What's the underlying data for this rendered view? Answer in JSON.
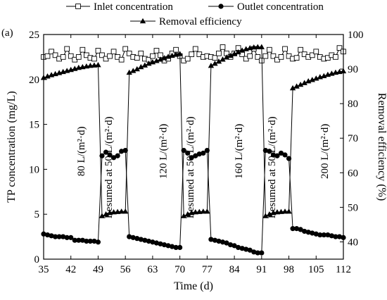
{
  "panel_label": "(a)",
  "chart_data": {
    "type": "line",
    "xlabel": "Time (d)",
    "ylabel_left": "TP concentration (mg/L)",
    "ylabel_right": "Removal efficiency (%)",
    "xlim": [
      35,
      112
    ],
    "ylim_left": [
      0,
      25
    ],
    "ylim_right": [
      35,
      100
    ],
    "xticks": [
      35,
      42,
      49,
      56,
      63,
      70,
      77,
      84,
      91,
      98,
      105,
      112
    ],
    "yticks_left": [
      0,
      5,
      10,
      15,
      20,
      25
    ],
    "yticks_right": [
      40,
      50,
      60,
      70,
      80,
      90,
      100
    ],
    "legend_position": "top",
    "series": [
      {
        "name": "Inlet concentration",
        "axis": "left",
        "marker": "square-open",
        "x": [
          35,
          36,
          37,
          38,
          39,
          40,
          41,
          42,
          43,
          44,
          45,
          46,
          47,
          48,
          49,
          50,
          51,
          52,
          53,
          54,
          55,
          56,
          57,
          58,
          59,
          60,
          61,
          62,
          63,
          64,
          65,
          66,
          67,
          68,
          69,
          70,
          71,
          72,
          73,
          74,
          75,
          76,
          77,
          78,
          79,
          80,
          81,
          82,
          83,
          84,
          85,
          86,
          87,
          88,
          89,
          90,
          91,
          92,
          93,
          94,
          95,
          96,
          97,
          98,
          99,
          100,
          101,
          102,
          103,
          104,
          105,
          106,
          107,
          108,
          109,
          110,
          111,
          112
        ],
        "values": [
          22.5,
          22.6,
          23.1,
          22.7,
          22.3,
          22.5,
          23.4,
          22.6,
          22.2,
          22.5,
          23.3,
          22.7,
          22.4,
          22.3,
          23.2,
          22.7,
          22.3,
          22.6,
          23.1,
          22.5,
          22.2,
          23.4,
          22.9,
          22.5,
          22.4,
          22.9,
          22.3,
          22.2,
          22.6,
          23.2,
          22.7,
          22.1,
          22.3,
          22.9,
          23.3,
          22.6,
          22.1,
          22.3,
          22.8,
          23.4,
          22.8,
          22.5,
          22.6,
          22.5,
          22.4,
          22.9,
          23.6,
          22.9,
          22.5,
          22.9,
          23.5,
          22.8,
          22.3,
          22.6,
          23.4,
          22.5,
          22.1,
          22.6,
          23.3,
          22.6,
          22.2,
          22.5,
          23.4,
          22.6,
          22.3,
          22.4,
          23.3,
          22.8,
          22.5,
          22.7,
          23.1,
          22.5,
          22.3,
          22.4,
          22.7,
          22.5,
          23.5,
          23.1
        ]
      },
      {
        "name": "Outlet concentration",
        "axis": "left",
        "marker": "circle-filled",
        "x": [
          35,
          36,
          37,
          38,
          39,
          40,
          41,
          42,
          43,
          44,
          45,
          46,
          47,
          48,
          49,
          50,
          51,
          52,
          53,
          54,
          55,
          56,
          57,
          58,
          59,
          60,
          61,
          62,
          63,
          64,
          65,
          66,
          67,
          68,
          69,
          70,
          71,
          72,
          73,
          74,
          75,
          76,
          77,
          78,
          79,
          80,
          81,
          82,
          83,
          84,
          85,
          86,
          87,
          88,
          89,
          90,
          91,
          92,
          93,
          94,
          95,
          96,
          97,
          98,
          99,
          100,
          101,
          102,
          103,
          104,
          105,
          106,
          107,
          108,
          109,
          110,
          111,
          112
        ],
        "values": [
          2.8,
          2.7,
          2.6,
          2.5,
          2.5,
          2.5,
          2.4,
          2.4,
          2.1,
          2.1,
          2.1,
          2.0,
          2.0,
          2.0,
          1.9,
          11.5,
          11.9,
          11.6,
          11.3,
          11.5,
          12.0,
          12.1,
          2.5,
          2.4,
          2.3,
          2.2,
          2.1,
          2.0,
          1.9,
          1.8,
          1.7,
          1.6,
          1.5,
          1.4,
          1.3,
          1.3,
          12.1,
          11.8,
          11.3,
          11.5,
          11.7,
          11.8,
          12.1,
          2.2,
          2.1,
          2.0,
          1.9,
          1.8,
          1.6,
          1.5,
          1.3,
          1.2,
          1.1,
          1.0,
          0.8,
          0.7,
          0.7,
          12.1,
          12.0,
          11.6,
          11.5,
          11.8,
          11.6,
          11.2,
          3.4,
          3.4,
          3.3,
          3.1,
          3.0,
          2.9,
          2.8,
          2.7,
          2.7,
          2.7,
          2.6,
          2.5,
          2.5,
          2.4
        ]
      },
      {
        "name": "Removal efficiency",
        "axis": "right",
        "marker": "triangle-filled",
        "x": [
          35,
          36,
          37,
          38,
          39,
          40,
          41,
          42,
          43,
          44,
          45,
          46,
          47,
          48,
          49,
          50,
          51,
          52,
          53,
          54,
          55,
          56,
          57,
          58,
          59,
          60,
          61,
          62,
          63,
          64,
          65,
          66,
          67,
          68,
          69,
          70,
          71,
          72,
          73,
          74,
          75,
          76,
          77,
          78,
          79,
          80,
          81,
          82,
          83,
          84,
          85,
          86,
          87,
          88,
          89,
          90,
          91,
          92,
          93,
          94,
          95,
          96,
          97,
          98,
          99,
          100,
          101,
          102,
          103,
          104,
          105,
          106,
          107,
          108,
          109,
          110,
          111,
          112
        ],
        "values": [
          87.5,
          87.9,
          88.3,
          88.6,
          88.9,
          89.2,
          89.5,
          89.8,
          90.1,
          90.4,
          90.6,
          90.8,
          91.0,
          91.1,
          91.2,
          47.5,
          48.0,
          48.4,
          48.6,
          48.7,
          48.8,
          48.8,
          89.0,
          89.5,
          90.0,
          90.6,
          91.1,
          91.6,
          92.0,
          92.4,
          92.8,
          93.2,
          93.6,
          93.9,
          94.2,
          94.4,
          47.5,
          48.0,
          48.4,
          48.6,
          48.7,
          48.8,
          48.8,
          91.0,
          91.6,
          92.2,
          92.8,
          93.4,
          93.9,
          94.4,
          94.9,
          95.4,
          95.8,
          96.1,
          96.3,
          96.4,
          96.4,
          47.5,
          48.0,
          48.4,
          48.6,
          48.7,
          48.8,
          48.8,
          84.5,
          85.0,
          85.5,
          86.0,
          86.5,
          86.9,
          87.3,
          87.7,
          88.0,
          88.4,
          88.7,
          89.0,
          89.2,
          89.4
        ]
      }
    ],
    "annotations": [
      {
        "text": "80 L/(m²·d)",
        "x": 45.5,
        "y": 12
      },
      {
        "text": "Resumed at 50 L/(m²·d)",
        "x": 52.5,
        "y": 10.2
      },
      {
        "text": "120 L/(m²·d)",
        "x": 66.5,
        "y": 12
      },
      {
        "text": "Resumed at 50 L/(m²·d)",
        "x": 73.5,
        "y": 10.2
      },
      {
        "text": "160 L/(m²·d)",
        "x": 86,
        "y": 12
      },
      {
        "text": "Resumed at 50 L/(m²·d)",
        "x": 94.5,
        "y": 10.2
      },
      {
        "text": "200 L/(m²·d)",
        "x": 108,
        "y": 12
      }
    ]
  }
}
